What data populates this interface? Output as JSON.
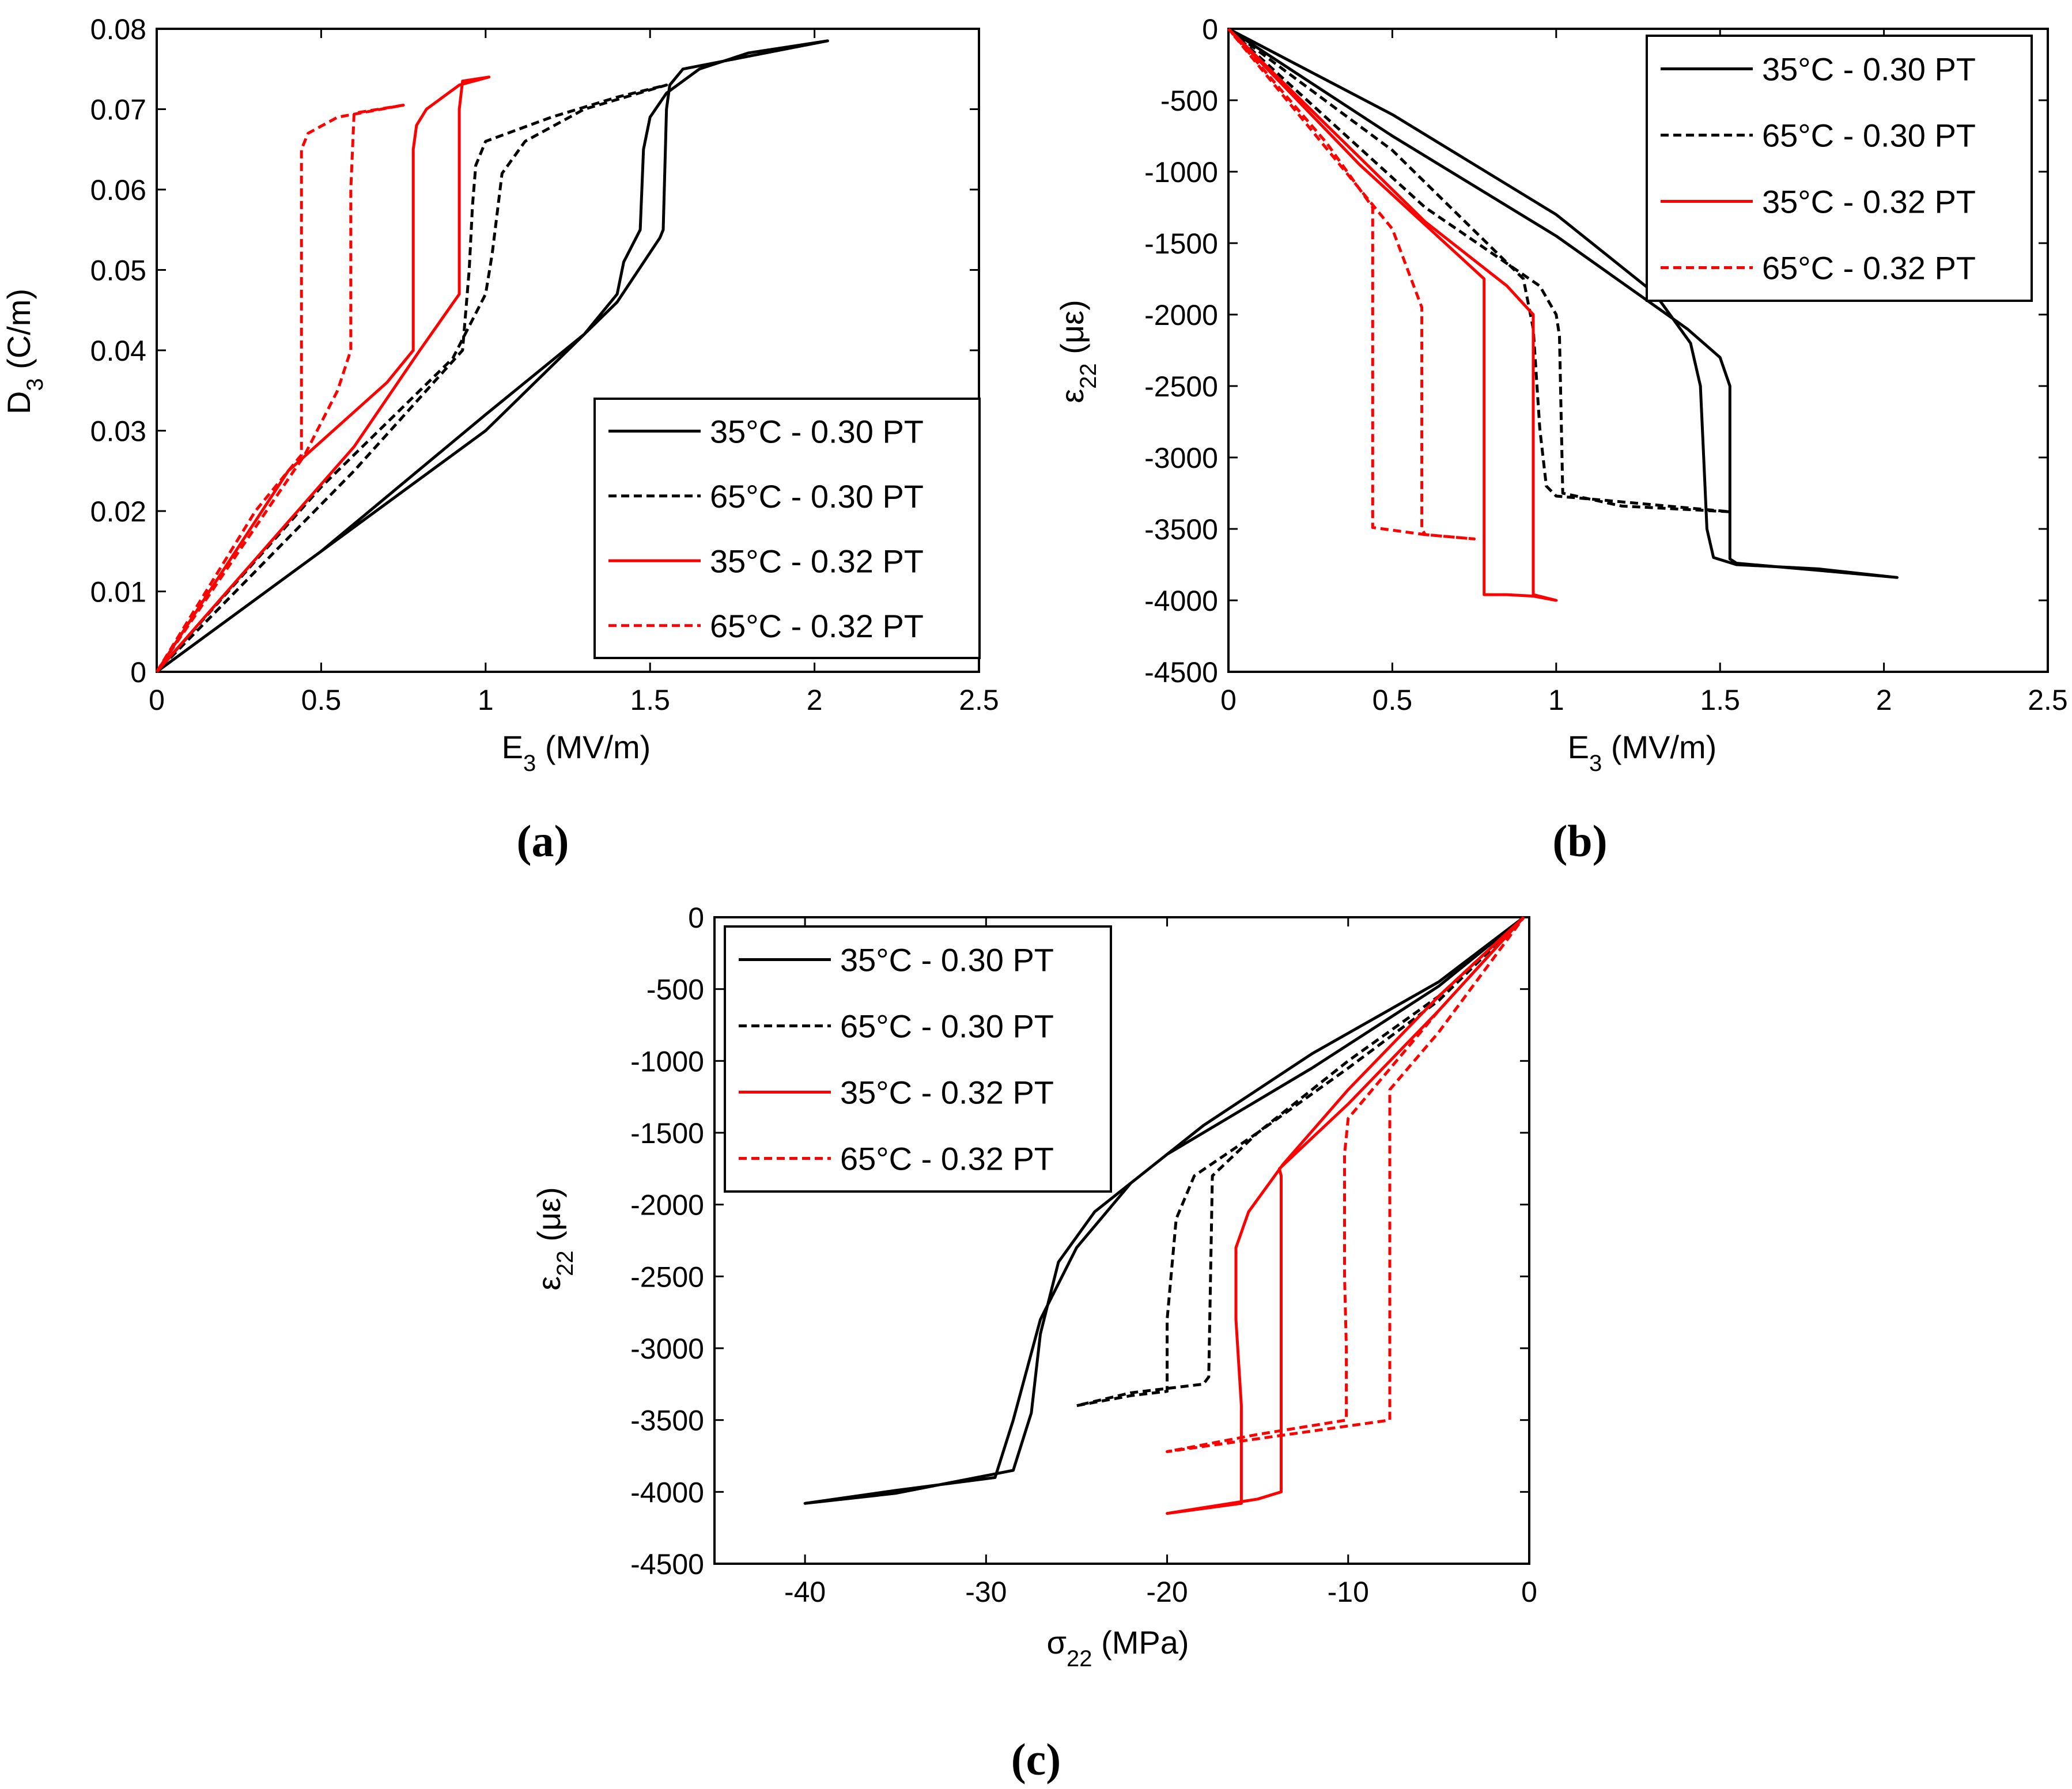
{
  "legend_entries": [
    {
      "label": "35°C - 0.30 PT",
      "color": "#000000",
      "style": "solid"
    },
    {
      "label": "65°C - 0.30 PT",
      "color": "#000000",
      "style": "dashed"
    },
    {
      "label": "35°C - 0.32 PT",
      "color": "#ff0000",
      "style": "solid"
    },
    {
      "label": "65°C - 0.32 PT",
      "color": "#ff0000",
      "style": "dashed"
    }
  ],
  "panels": [
    {
      "label": "(a)",
      "xlabel": "E₃ (MV/m)",
      "ylabel": "D₃ (C/m)"
    },
    {
      "label": "(b)",
      "xlabel": "E₃ (MV/m)",
      "ylabel": "ε₂₂ (με)"
    },
    {
      "label": "(c)",
      "xlabel": "σ₂₂ (MPa)",
      "ylabel": "ε₂₂ (με)"
    }
  ],
  "chart_data": [
    {
      "type": "line",
      "title": "(a)",
      "xlabel": "E₃ (MV/m)",
      "ylabel": "D₃ (C/m)",
      "xlim": [
        0,
        2.5
      ],
      "ylim": [
        0,
        0.08
      ],
      "xticks": [
        "0",
        "0.5",
        "1",
        "1.5",
        "2",
        "2.5"
      ],
      "yticks": [
        "0",
        "0.01",
        "0.02",
        "0.03",
        "0.04",
        "0.05",
        "0.06",
        "0.07",
        "0.08"
      ],
      "legend_position": "bottom-right",
      "series": [
        {
          "name": "35°C - 0.30 PT",
          "color": "#000000",
          "dash": false,
          "x": [
            0,
            0.5,
            1.0,
            1.3,
            1.4,
            1.42,
            1.47,
            1.48,
            1.5,
            1.55,
            1.65,
            1.8,
            2.04,
            1.6,
            1.56,
            1.55,
            1.54,
            1.53,
            1.4,
            1.0,
            0.5,
            0
          ],
          "y": [
            0,
            0.015,
            0.032,
            0.042,
            0.047,
            0.051,
            0.055,
            0.065,
            0.069,
            0.072,
            0.075,
            0.077,
            0.0785,
            0.075,
            0.073,
            0.07,
            0.055,
            0.054,
            0.046,
            0.03,
            0.015,
            0
          ]
        },
        {
          "name": "65°C - 0.30 PT",
          "color": "#000000",
          "dash": true,
          "x": [
            0,
            0.5,
            0.9,
            0.95,
            1.0,
            1.02,
            1.05,
            1.12,
            1.3,
            1.55,
            1.4,
            1.2,
            1.0,
            0.97,
            0.96,
            0.95,
            0.93,
            0.6,
            0
          ],
          "y": [
            0,
            0.023,
            0.039,
            0.043,
            0.047,
            0.052,
            0.062,
            0.066,
            0.07,
            0.073,
            0.0715,
            0.069,
            0.066,
            0.063,
            0.058,
            0.05,
            0.04,
            0.025,
            0
          ]
        },
        {
          "name": "35°C - 0.32 PT",
          "color": "#ff0000",
          "dash": false,
          "x": [
            0,
            0.4,
            0.7,
            0.78,
            0.78,
            0.79,
            0.82,
            0.92,
            1.01,
            0.93,
            0.92,
            0.92,
            0.8,
            0.6,
            0
          ],
          "y": [
            0,
            0.025,
            0.036,
            0.04,
            0.065,
            0.068,
            0.07,
            0.073,
            0.074,
            0.0735,
            0.07,
            0.047,
            0.04,
            0.028,
            0
          ]
        },
        {
          "name": "65°C - 0.32 PT",
          "color": "#ff0000",
          "dash": true,
          "x": [
            0,
            0.3,
            0.44,
            0.44,
            0.46,
            0.55,
            0.75,
            0.6,
            0.59,
            0.59,
            0.55,
            0.45,
            0
          ],
          "y": [
            0,
            0.02,
            0.027,
            0.065,
            0.067,
            0.069,
            0.0705,
            0.0695,
            0.06,
            0.04,
            0.035,
            0.027,
            0
          ]
        }
      ]
    },
    {
      "type": "line",
      "title": "(b)",
      "xlabel": "E₃ (MV/m)",
      "ylabel": "ε₂₂ (με)",
      "xlim": [
        0,
        2.5
      ],
      "ylim": [
        -4500,
        0
      ],
      "xticks": [
        "0",
        "0.5",
        "1",
        "1.5",
        "2",
        "2.5"
      ],
      "yticks": [
        "0",
        "-500",
        "-1000",
        "-1500",
        "-2000",
        "-2500",
        "-3000",
        "-3500",
        "-4000",
        "-4500"
      ],
      "legend_position": "top-right",
      "series": [
        {
          "name": "35°C - 0.30 PT",
          "color": "#000000",
          "dash": false,
          "x": [
            0,
            0.5,
            1.0,
            1.3,
            1.41,
            1.44,
            1.45,
            1.46,
            1.48,
            1.55,
            1.8,
            2.04,
            1.8,
            1.55,
            1.53,
            1.53,
            1.5,
            1.4,
            1.0,
            0.5,
            0
          ],
          "y": [
            0,
            -600,
            -1300,
            -1850,
            -2200,
            -2500,
            -3000,
            -3500,
            -3700,
            -3750,
            -3780,
            -3840,
            -3790,
            -3740,
            -3710,
            -2500,
            -2300,
            -2100,
            -1450,
            -750,
            0
          ]
        },
        {
          "name": "65°C - 0.30 PT",
          "color": "#000000",
          "dash": true,
          "x": [
            0,
            0.5,
            0.9,
            0.93,
            0.95,
            0.97,
            1.0,
            1.15,
            1.53,
            1.2,
            1.02,
            1.01,
            1.0,
            0.95,
            0.6,
            0
          ],
          "y": [
            0,
            -850,
            -1750,
            -2100,
            -2800,
            -3200,
            -3270,
            -3300,
            -3380,
            -3340,
            -3250,
            -2150,
            -2000,
            -1800,
            -1250,
            0
          ]
        },
        {
          "name": "35°C - 0.32 PT",
          "color": "#ff0000",
          "dash": false,
          "x": [
            0,
            0.4,
            0.78,
            0.78,
            0.85,
            0.93,
            1.0,
            0.93,
            0.93,
            0.85,
            0.6,
            0
          ],
          "y": [
            0,
            -950,
            -1750,
            -3960,
            -3960,
            -3970,
            -4000,
            -3960,
            -2000,
            -1800,
            -1350,
            0
          ]
        },
        {
          "name": "65°C - 0.32 PT",
          "color": "#ff0000",
          "dash": true,
          "x": [
            0,
            0.3,
            0.44,
            0.44,
            0.6,
            0.75,
            0.6,
            0.59,
            0.59,
            0.5,
            0
          ],
          "y": [
            0,
            -800,
            -1250,
            -3490,
            -3540,
            -3570,
            -3540,
            -3500,
            -1950,
            -1400,
            0
          ]
        }
      ]
    },
    {
      "type": "line",
      "title": "(c)",
      "xlabel": "σ₂₂ (MPa)",
      "ylabel": "ε₂₂ (με)",
      "xlim": [
        -45,
        0
      ],
      "ylim": [
        -4500,
        0
      ],
      "xticks": [
        "-40",
        "-30",
        "-20",
        "-10",
        "0"
      ],
      "yticks": [
        "0",
        "-500",
        "-1000",
        "-1500",
        "-2000",
        "-2500",
        "-3000",
        "-3500",
        "-4000",
        "-4500"
      ],
      "legend_position": "top-left",
      "series": [
        {
          "name": "35°C - 0.30 PT",
          "color": "#000000",
          "dash": false,
          "x": [
            -0.3,
            -5,
            -12,
            -18,
            -22,
            -25,
            -27,
            -28.5,
            -29.5,
            -35,
            -40,
            -35,
            -28.5,
            -27.5,
            -27,
            -26,
            -24,
            -20,
            -12,
            -5,
            -0.3
          ],
          "y": [
            0,
            -450,
            -950,
            -1450,
            -1850,
            -2300,
            -2800,
            -3500,
            -3900,
            -3990,
            -4080,
            -4010,
            -3850,
            -3450,
            -2900,
            -2400,
            -2050,
            -1650,
            -1050,
            -480,
            0
          ]
        },
        {
          "name": "65°C - 0.30 PT",
          "color": "#000000",
          "dash": true,
          "x": [
            -0.3,
            -5,
            -10,
            -15,
            -18.5,
            -19.5,
            -20,
            -20,
            -22,
            -25,
            -22,
            -18,
            -17.7,
            -17.5,
            -15,
            -10,
            -5,
            -0.3
          ],
          "y": [
            0,
            -550,
            -1000,
            -1500,
            -1800,
            -2100,
            -2800,
            -3300,
            -3330,
            -3400,
            -3310,
            -3250,
            -3200,
            -1800,
            -1500,
            -1050,
            -580,
            0
          ]
        },
        {
          "name": "35°C - 0.32 PT",
          "color": "#ff0000",
          "dash": false,
          "x": [
            -0.3,
            -5,
            -10,
            -13.6,
            -15.5,
            -16.2,
            -16.2,
            -15.9,
            -15.9,
            -20,
            -15,
            -13.7,
            -13.7,
            -13.8,
            -10,
            -5,
            -0.3
          ],
          "y": [
            0,
            -550,
            -1200,
            -1720,
            -2050,
            -2300,
            -2800,
            -3400,
            -4080,
            -4150,
            -4050,
            -4000,
            -1800,
            -1750,
            -1300,
            -650,
            0
          ]
        },
        {
          "name": "65°C - 0.32 PT",
          "color": "#ff0000",
          "dash": true,
          "x": [
            -0.3,
            -5,
            -10,
            -10.2,
            -10.2,
            -10.1,
            -10.1,
            -15,
            -20,
            -15,
            -7.7,
            -7.7,
            -5,
            -0.3
          ],
          "y": [
            0,
            -650,
            -1400,
            -1650,
            -2500,
            -3000,
            -3500,
            -3600,
            -3720,
            -3630,
            -3500,
            -1200,
            -800,
            0
          ]
        }
      ]
    }
  ]
}
